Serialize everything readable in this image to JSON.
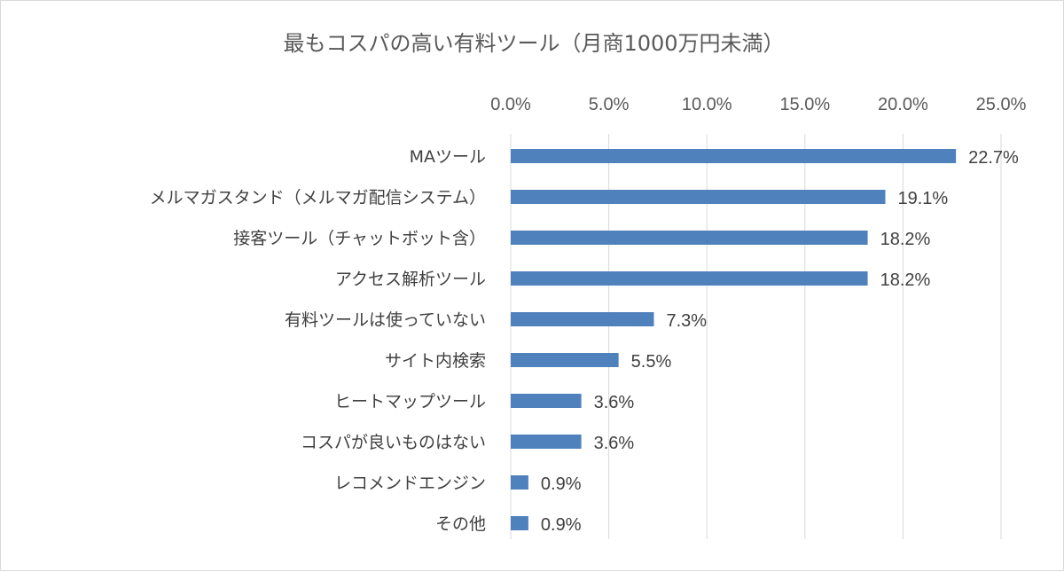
{
  "chart_data": {
    "type": "bar",
    "orientation": "horizontal",
    "title": "最もコスパの高い有料ツール（月商1000万円未満）",
    "categories": [
      "MAツール",
      "メルマガスタンド（メルマガ配信システム）",
      "接客ツール（チャットボット含）",
      "アクセス解析ツール",
      "有料ツールは使っていない",
      "サイト内検索",
      "ヒートマップツール",
      "コスパが良いものはない",
      "レコメンドエンジン",
      "その他"
    ],
    "values": [
      22.7,
      19.1,
      18.2,
      18.2,
      7.3,
      5.5,
      3.6,
      3.6,
      0.9,
      0.9
    ],
    "value_labels": [
      "22.7%",
      "19.1%",
      "18.2%",
      "18.2%",
      "7.3%",
      "5.5%",
      "3.6%",
      "3.6%",
      "0.9%",
      "0.9%"
    ],
    "x_ticks": [
      "0.0%",
      "5.0%",
      "10.0%",
      "15.0%",
      "20.0%",
      "25.0%"
    ],
    "xlim": [
      0,
      25
    ],
    "axis_position": "top",
    "grid": true,
    "bar_color": "#4f81bd"
  }
}
